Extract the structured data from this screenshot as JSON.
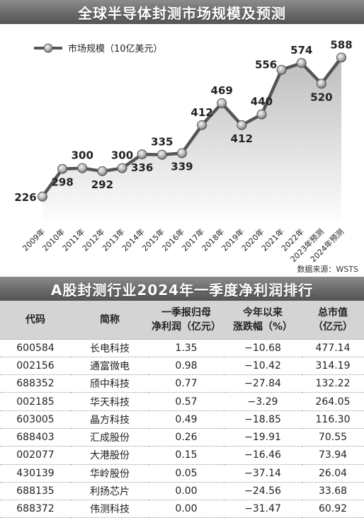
{
  "chart_data": {
    "type": "line",
    "title": "全球半导体封测市场规模及预测",
    "legend": "市场规模（10亿美元）",
    "legend_position": "top-left",
    "source": "数据来源：WSTS",
    "x": [
      "2009年",
      "2010年",
      "2011年",
      "2012年",
      "2013年",
      "2014年",
      "2015年",
      "2016年",
      "2017年",
      "2018年",
      "2019年",
      "2020年",
      "2021年",
      "2022年",
      "2023年预测",
      "2024年预测"
    ],
    "series": [
      {
        "name": "市场规模（10亿美元）",
        "values": [
          226,
          298,
          300,
          292,
          300,
          336,
          335,
          339,
          412,
          469,
          412,
          440,
          556,
          574,
          520,
          588
        ]
      }
    ],
    "labels": [
      "226",
      "298",
      "300",
      "292",
      "300",
      "336",
      "335",
      "339",
      "412",
      "469",
      "412",
      "440",
      "556",
      "574",
      "520",
      "588"
    ],
    "ylim": [
      150,
      620
    ],
    "grid": false
  },
  "table": {
    "title": "A股封测行业2024年一季度净利润排行",
    "headers": [
      [
        "代码"
      ],
      [
        "简称"
      ],
      [
        "一季报归母",
        "净利润（亿元）"
      ],
      [
        "今年以来",
        "涨跌幅（%）"
      ],
      [
        "总市值",
        "（亿元）"
      ]
    ],
    "rows": [
      [
        "600584",
        "长电科技",
        "1.35",
        "−10.68",
        "477.14"
      ],
      [
        "002156",
        "通富微电",
        "0.98",
        "−10.42",
        "314.19"
      ],
      [
        "688352",
        "颀中科技",
        "0.77",
        "−27.84",
        "132.22"
      ],
      [
        "002185",
        "华天科技",
        "0.57",
        "−3.29",
        "264.05"
      ],
      [
        "603005",
        "晶方科技",
        "0.49",
        "−18.85",
        "116.30"
      ],
      [
        "688403",
        "汇成股份",
        "0.26",
        "−19.91",
        "70.55"
      ],
      [
        "002077",
        "大港股份",
        "0.15",
        "−16.46",
        "73.94"
      ],
      [
        "430139",
        "华岭股份",
        "0.05",
        "−37.14",
        "26.04"
      ],
      [
        "688135",
        "利扬芯片",
        "0.00",
        "−24.56",
        "33.68"
      ],
      [
        "688372",
        "伟测科技",
        "0.00",
        "−31.47",
        "60.92"
      ]
    ]
  },
  "colors": {
    "banner": "#707070",
    "line": "#5a5a5a",
    "area": "#cfcfcf",
    "header_bg": "#d4d4d4"
  }
}
